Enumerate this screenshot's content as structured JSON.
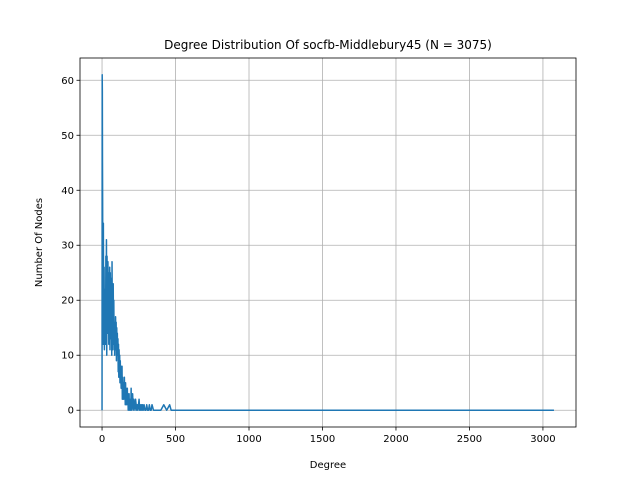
{
  "chart_data": {
    "type": "line",
    "title": "Degree Distribution Of socfb-Middlebury45 (N = 3075)",
    "xlabel": "Degree",
    "ylabel": "Number Of Nodes",
    "xlim": [
      -150,
      3225
    ],
    "ylim": [
      -3.05,
      64.05
    ],
    "xticks": [
      0,
      500,
      1000,
      1500,
      2000,
      2500,
      3000
    ],
    "xtick_labels": [
      "0",
      "500",
      "1000",
      "1500",
      "2000",
      "2500",
      "3000"
    ],
    "yticks": [
      0,
      10,
      20,
      30,
      40,
      50,
      60
    ],
    "ytick_labels": [
      "0",
      "10",
      "20",
      "30",
      "40",
      "50",
      "60"
    ],
    "grid": true,
    "legend": "none",
    "line_color": "#1f77b4",
    "series": [
      {
        "x": [
          0,
          1,
          2,
          3,
          4,
          5,
          6,
          7,
          8,
          9,
          10,
          12,
          14,
          16,
          18,
          20,
          22,
          24,
          26,
          28,
          30,
          32,
          34,
          36,
          38,
          40,
          42,
          44,
          46,
          48,
          50,
          52,
          54,
          56,
          58,
          60,
          62,
          64,
          66,
          68,
          70,
          72,
          74,
          76,
          78,
          80,
          82,
          84,
          86,
          88,
          90,
          92,
          94,
          96,
          98,
          100,
          102,
          104,
          106,
          108,
          110,
          112,
          114,
          116,
          118,
          120,
          122,
          124,
          126,
          128,
          130,
          132,
          134,
          136,
          138,
          140,
          142,
          144,
          146,
          148,
          150,
          152,
          154,
          156,
          158,
          160,
          162,
          164,
          166,
          168,
          170,
          172,
          174,
          176,
          178,
          180,
          182,
          184,
          186,
          188,
          190,
          192,
          194,
          196,
          198,
          200,
          204,
          208,
          212,
          216,
          220,
          224,
          228,
          232,
          236,
          240,
          244,
          248,
          252,
          256,
          260,
          264,
          268,
          272,
          276,
          280,
          286,
          292,
          298,
          304,
          310,
          316,
          322,
          328,
          334,
          340,
          350,
          360,
          370,
          380,
          400,
          420,
          440,
          460,
          470,
          480,
          500,
          1000,
          1500,
          2000,
          2500,
          3000,
          3075
        ],
        "y": [
          0,
          61,
          58,
          45,
          38,
          27,
          20,
          15,
          12,
          34,
          24,
          18,
          26,
          11,
          22,
          14,
          19,
          12,
          28,
          16,
          31,
          10,
          28,
          22,
          14,
          27,
          20,
          25,
          12,
          23,
          16,
          26,
          11,
          25,
          14,
          21,
          13,
          24,
          10,
          27,
          15,
          22,
          11,
          23,
          14,
          20,
          12,
          16,
          10,
          15,
          13,
          17,
          11,
          16,
          9,
          15,
          12,
          14,
          10,
          13,
          7,
          12,
          6,
          11,
          8,
          10,
          5,
          9,
          6,
          8,
          4,
          7,
          5,
          8,
          2,
          6,
          3,
          5,
          2,
          5,
          3,
          6,
          2,
          4,
          1,
          5,
          2,
          4,
          1,
          3,
          2,
          4,
          1,
          3,
          0,
          2,
          1,
          3,
          0,
          2,
          1,
          2,
          0,
          1,
          4,
          0,
          1,
          3,
          0,
          2,
          1,
          0,
          2,
          1,
          0,
          1,
          0,
          1,
          2,
          0,
          1,
          0,
          1,
          0,
          1,
          0,
          1,
          0,
          0,
          1,
          0,
          0,
          1,
          0,
          0,
          1,
          0,
          0,
          0,
          0,
          0,
          1,
          0,
          1,
          0,
          0,
          0,
          0,
          0,
          0,
          0,
          0,
          0
        ]
      }
    ]
  }
}
